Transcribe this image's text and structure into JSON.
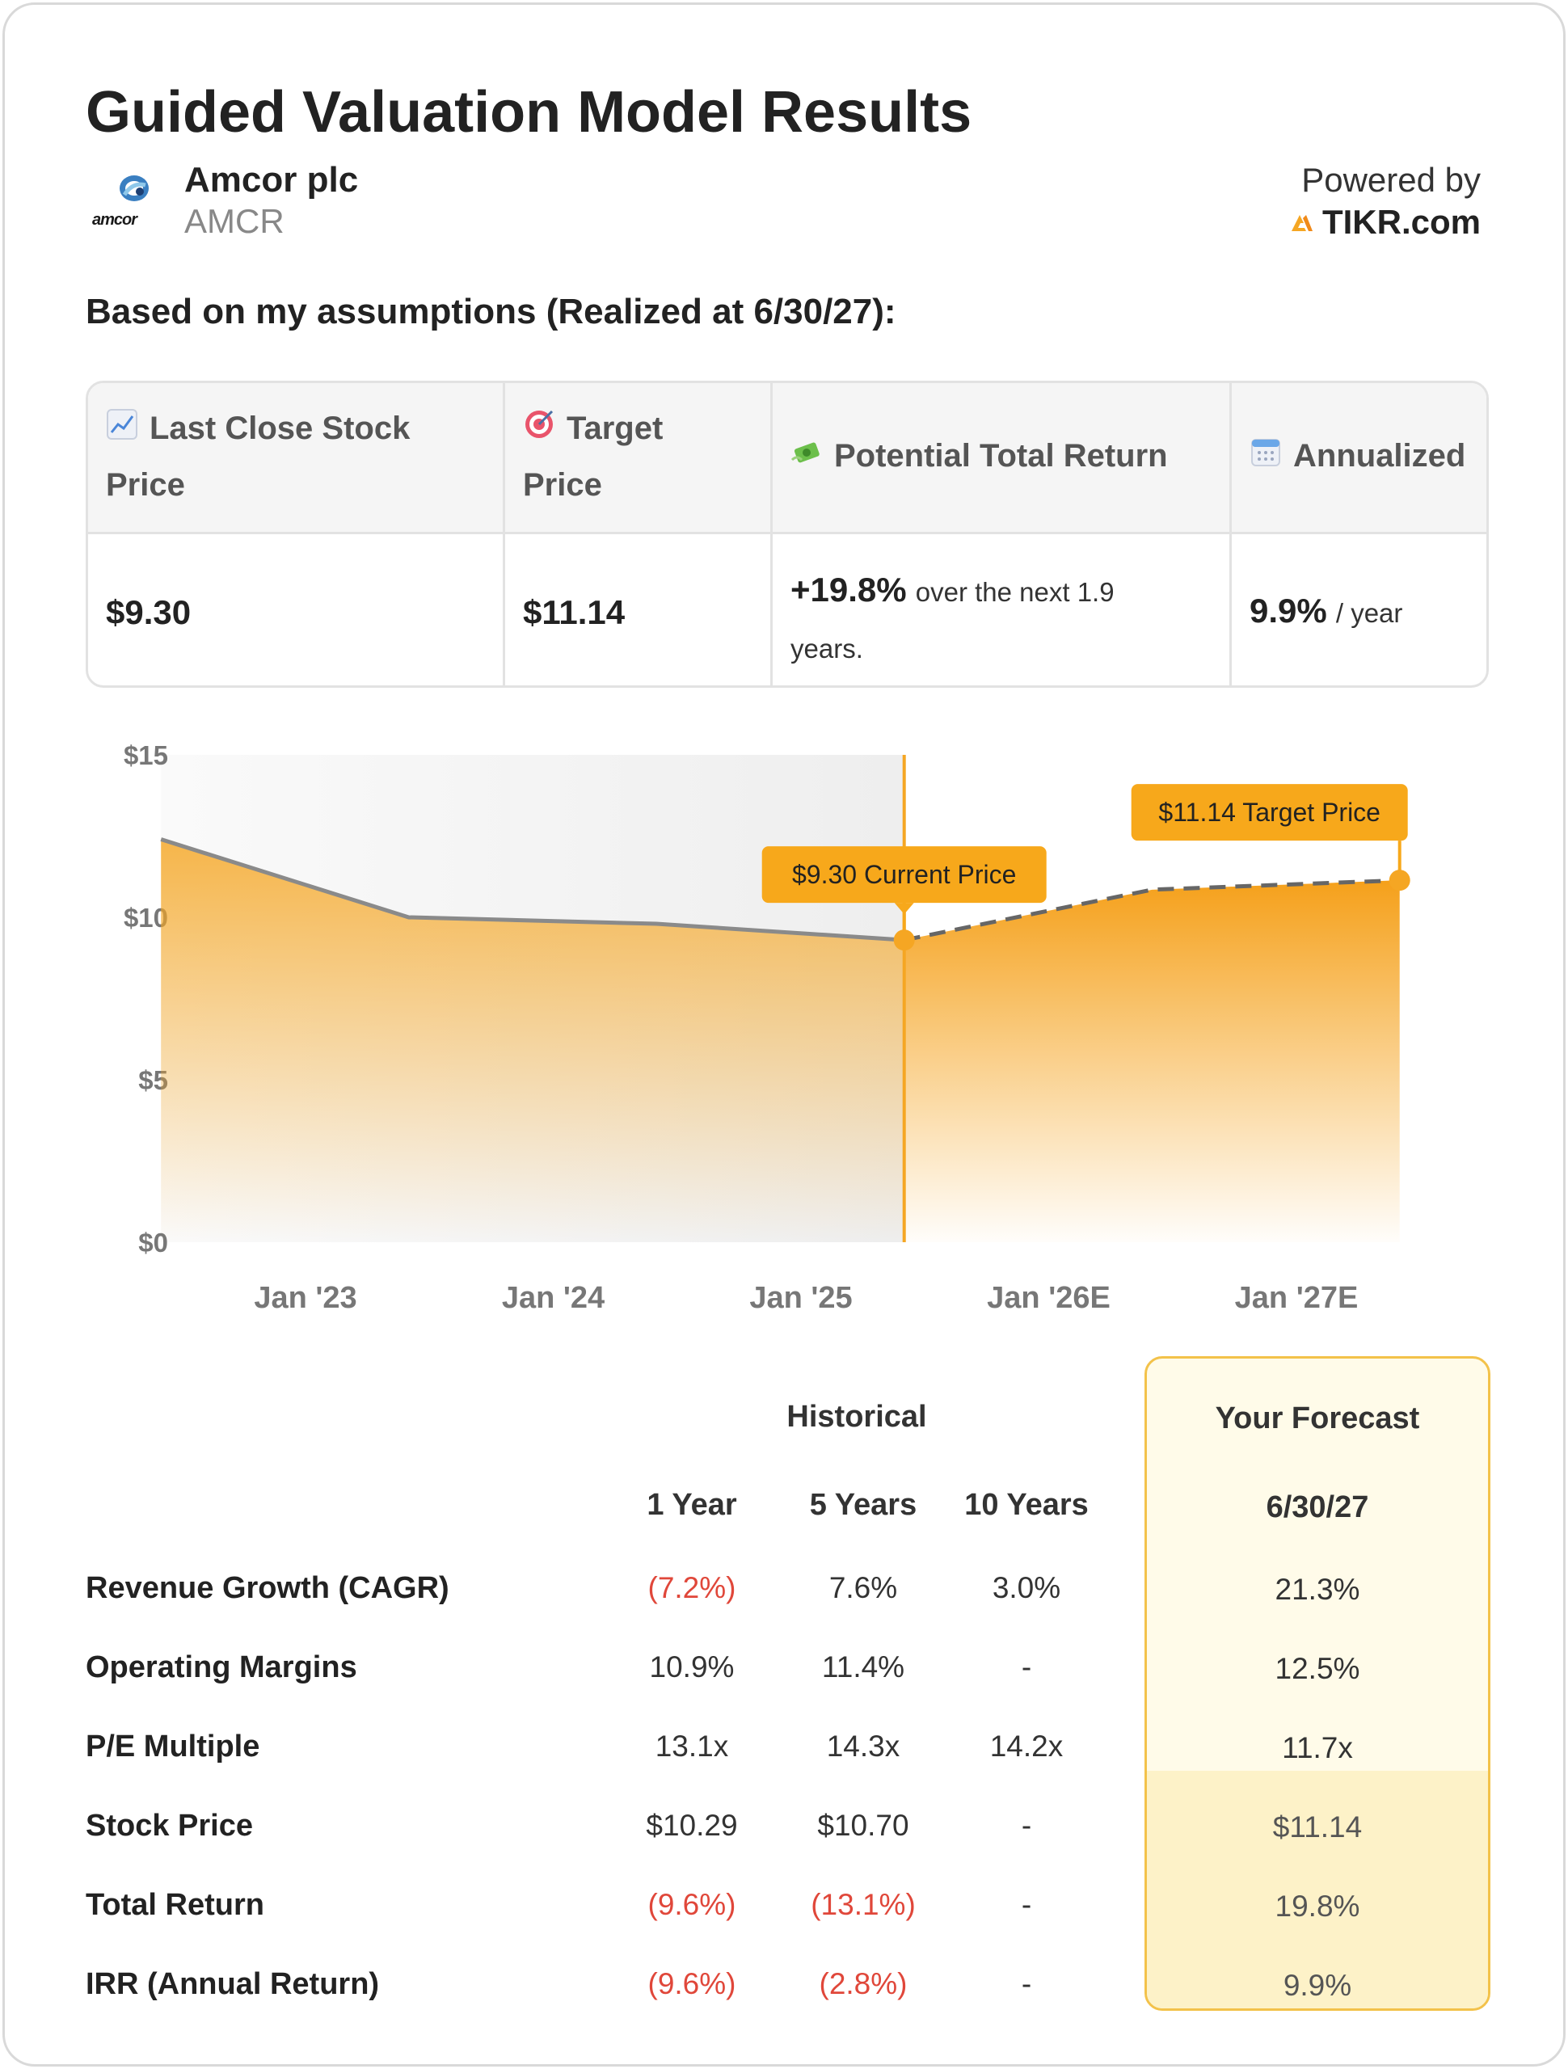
{
  "header": {
    "title": "Guided Valuation Model Results",
    "company_name": "Amcor plc",
    "ticker": "AMCR",
    "logo_text": "amcor",
    "powered_by": "Powered by",
    "brand": "TIKR.com"
  },
  "assumptions_label": "Based on my assumptions (Realized at 6/30/27):",
  "summary": {
    "headers": {
      "last_close_l1": "Last Close Stock",
      "last_close_l2": "Price",
      "target_l1": "Target",
      "target_l2": "Price",
      "return": "Potential Total Return",
      "annualized": "Annualized"
    },
    "icons": [
      "chart-increasing-icon",
      "target-icon",
      "money-with-wings-icon",
      "calendar-icon"
    ],
    "last_close": "$9.30",
    "target": "$11.14",
    "return_pct": "+19.8%",
    "return_text_l1": "over the next 1.9",
    "return_text_l2": "years.",
    "annualized_pct": "9.9%",
    "annualized_suffix": "/ year"
  },
  "chart_data": {
    "type": "area",
    "y_ticks": [
      "$15",
      "$10",
      "$5",
      "$0"
    ],
    "ylim": [
      0,
      15
    ],
    "x_ticks": [
      "Jan '23",
      "Jan '24",
      "Jan '25",
      "Jan '26E",
      "Jan '27E"
    ],
    "historical": [
      {
        "x": "2022-06",
        "y": 12.4
      },
      {
        "x": "2023-06",
        "y": 10.0
      },
      {
        "x": "2024-06",
        "y": 9.8
      },
      {
        "x": "2025-06",
        "y": 9.3
      }
    ],
    "forecast": [
      {
        "x": "2025-06",
        "y": 9.3
      },
      {
        "x": "2026-06",
        "y": 10.85
      },
      {
        "x": "2027-06",
        "y": 11.14
      }
    ],
    "annotations": [
      {
        "label": "$9.30 Current Price",
        "x": "2025-06",
        "y": 9.3
      },
      {
        "label": "$11.14 Target Price",
        "x": "2027-06",
        "y": 11.14
      }
    ],
    "colors": {
      "fill": "#f5a623",
      "line": "#888888",
      "marker": "#f5a623",
      "label_bg": "#f7a81b"
    }
  },
  "metrics": {
    "historical_label": "Historical",
    "forecast_label": "Your Forecast",
    "columns": [
      "1 Year",
      "5 Years",
      "10 Years"
    ],
    "forecast_date": "6/30/27",
    "rows": [
      {
        "label": "Revenue Growth (CAGR)",
        "v1": "(7.2%)",
        "v5": "7.6%",
        "v10": "3.0%",
        "fc": "21.3%"
      },
      {
        "label": "Operating Margins",
        "v1": "10.9%",
        "v5": "11.4%",
        "v10": "-",
        "fc": "12.5%"
      },
      {
        "label": "P/E Multiple",
        "v1": "13.1x",
        "v5": "14.3x",
        "v10": "14.2x",
        "fc": "11.7x"
      },
      {
        "label": "Stock Price",
        "v1": "$10.29",
        "v5": "$10.70",
        "v10": "-",
        "fc": "$11.14"
      },
      {
        "label": "Total Return",
        "v1": "(9.6%)",
        "v5": "(13.1%)",
        "v10": "-",
        "fc": "19.8%"
      },
      {
        "label": "IRR (Annual Return)",
        "v1": "(9.6%)",
        "v5": "(2.8%)",
        "v10": "-",
        "fc": "9.9%"
      }
    ]
  }
}
